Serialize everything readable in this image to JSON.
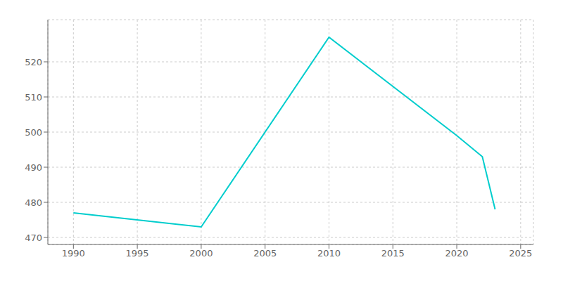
{
  "chart_data": {
    "type": "line",
    "x": [
      1990,
      2000,
      2010,
      2020,
      2022,
      2023
    ],
    "values": [
      477,
      473,
      527,
      499,
      493,
      478
    ],
    "color": "#00CDCD",
    "xlim": [
      1988,
      2026
    ],
    "ylim": [
      468,
      532
    ],
    "xticks": [
      1990,
      1995,
      2000,
      2005,
      2010,
      2015,
      2020,
      2025
    ],
    "yticks": [
      470,
      480,
      490,
      500,
      510,
      520
    ],
    "grid": true
  }
}
